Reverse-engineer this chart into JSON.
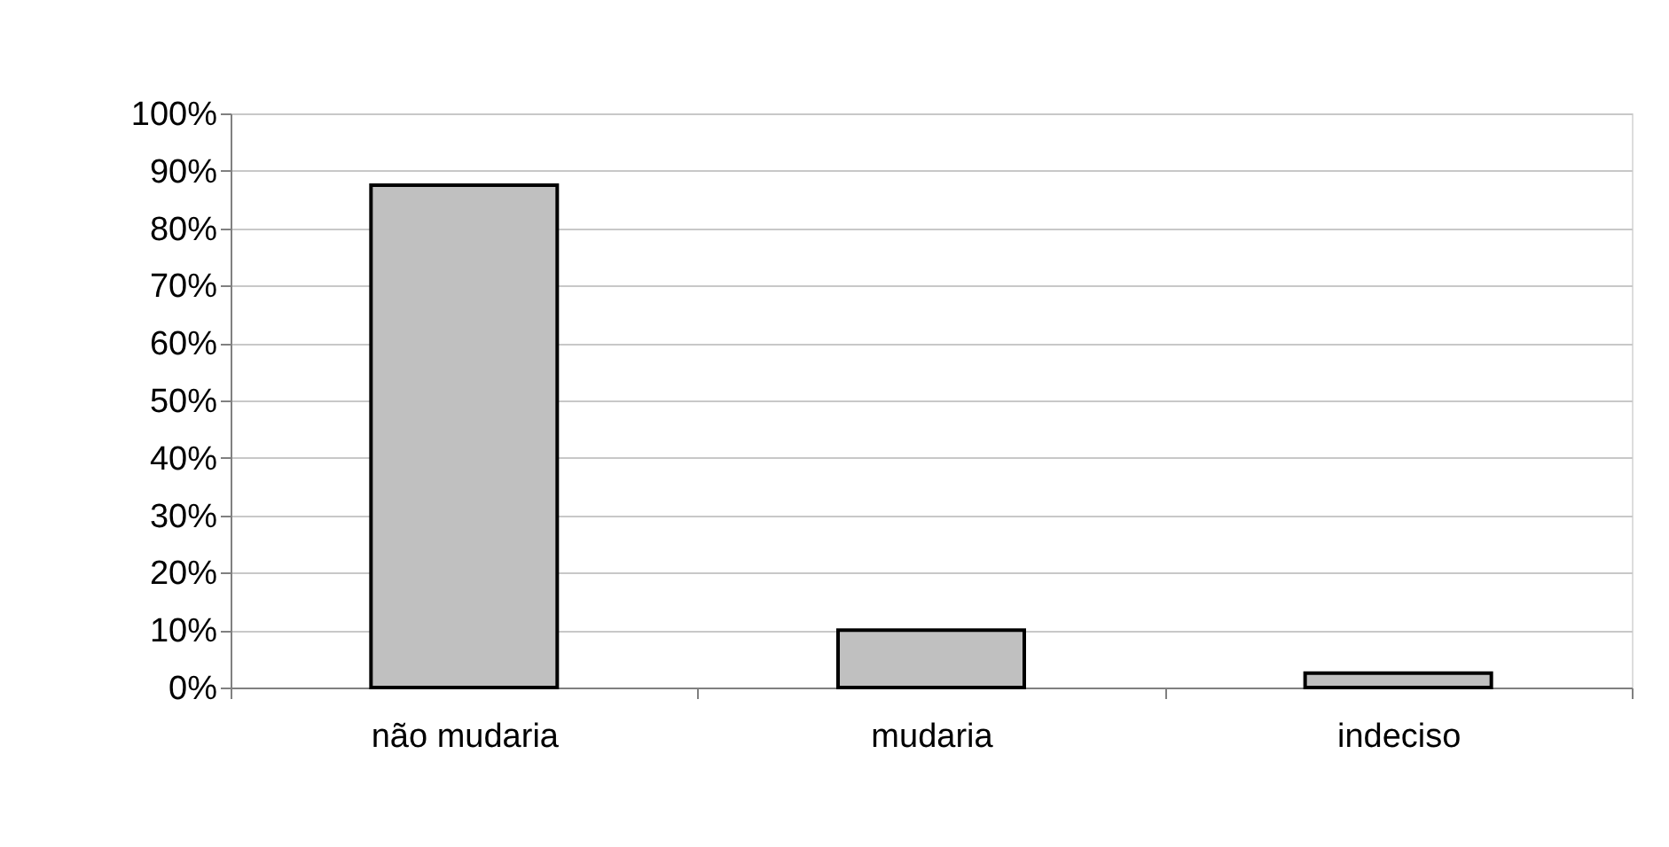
{
  "chart_data": {
    "type": "bar",
    "categories": [
      "não mudaria",
      "mudaria",
      "indeciso"
    ],
    "values": [
      87.5,
      10,
      2.5
    ],
    "color": "#c0c0c0",
    "ylim": [
      0,
      100
    ],
    "yticks": [
      {
        "value": 0,
        "label": "0%"
      },
      {
        "value": 10,
        "label": "10%"
      },
      {
        "value": 20,
        "label": "20%"
      },
      {
        "value": 30,
        "label": "30%"
      },
      {
        "value": 40,
        "label": "40%"
      },
      {
        "value": 50,
        "label": "50%"
      },
      {
        "value": 60,
        "label": "60%"
      },
      {
        "value": 70,
        "label": "70%"
      },
      {
        "value": 80,
        "label": "80%"
      },
      {
        "value": 90,
        "label": "90%"
      },
      {
        "value": 100,
        "label": "100%"
      }
    ],
    "grid": "y"
  }
}
